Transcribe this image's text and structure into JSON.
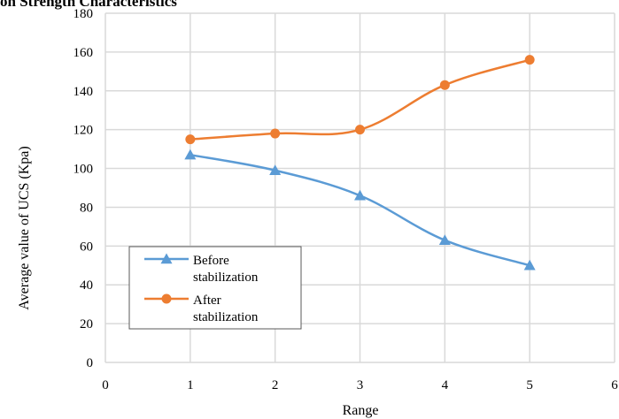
{
  "chart_data": {
    "type": "line",
    "title": "on Strength Characteristics",
    "xlabel": "Range",
    "ylabel": "Average value of  UCS (Kpa)",
    "xlim": [
      0,
      6
    ],
    "ylim": [
      0,
      180
    ],
    "x_ticks": [
      0,
      1,
      2,
      3,
      4,
      5,
      6
    ],
    "y_ticks": [
      0,
      20,
      40,
      60,
      80,
      100,
      120,
      140,
      160,
      180
    ],
    "grid": true,
    "legend_position": "bottom-left",
    "series": [
      {
        "name": "Before stabilization",
        "name_lines": [
          "Before",
          "stabilization"
        ],
        "color": "#5B9BD5",
        "marker": "triangle",
        "smooth": true,
        "x": [
          1,
          2,
          3,
          4,
          5
        ],
        "y": [
          107,
          99,
          86,
          63,
          50
        ]
      },
      {
        "name": "After stabilization",
        "name_lines": [
          "After",
          "stabilization"
        ],
        "color": "#ED7D31",
        "marker": "circle",
        "smooth": true,
        "x": [
          1,
          2,
          3,
          4,
          5
        ],
        "y": [
          115,
          118,
          120,
          143,
          156
        ]
      }
    ]
  }
}
